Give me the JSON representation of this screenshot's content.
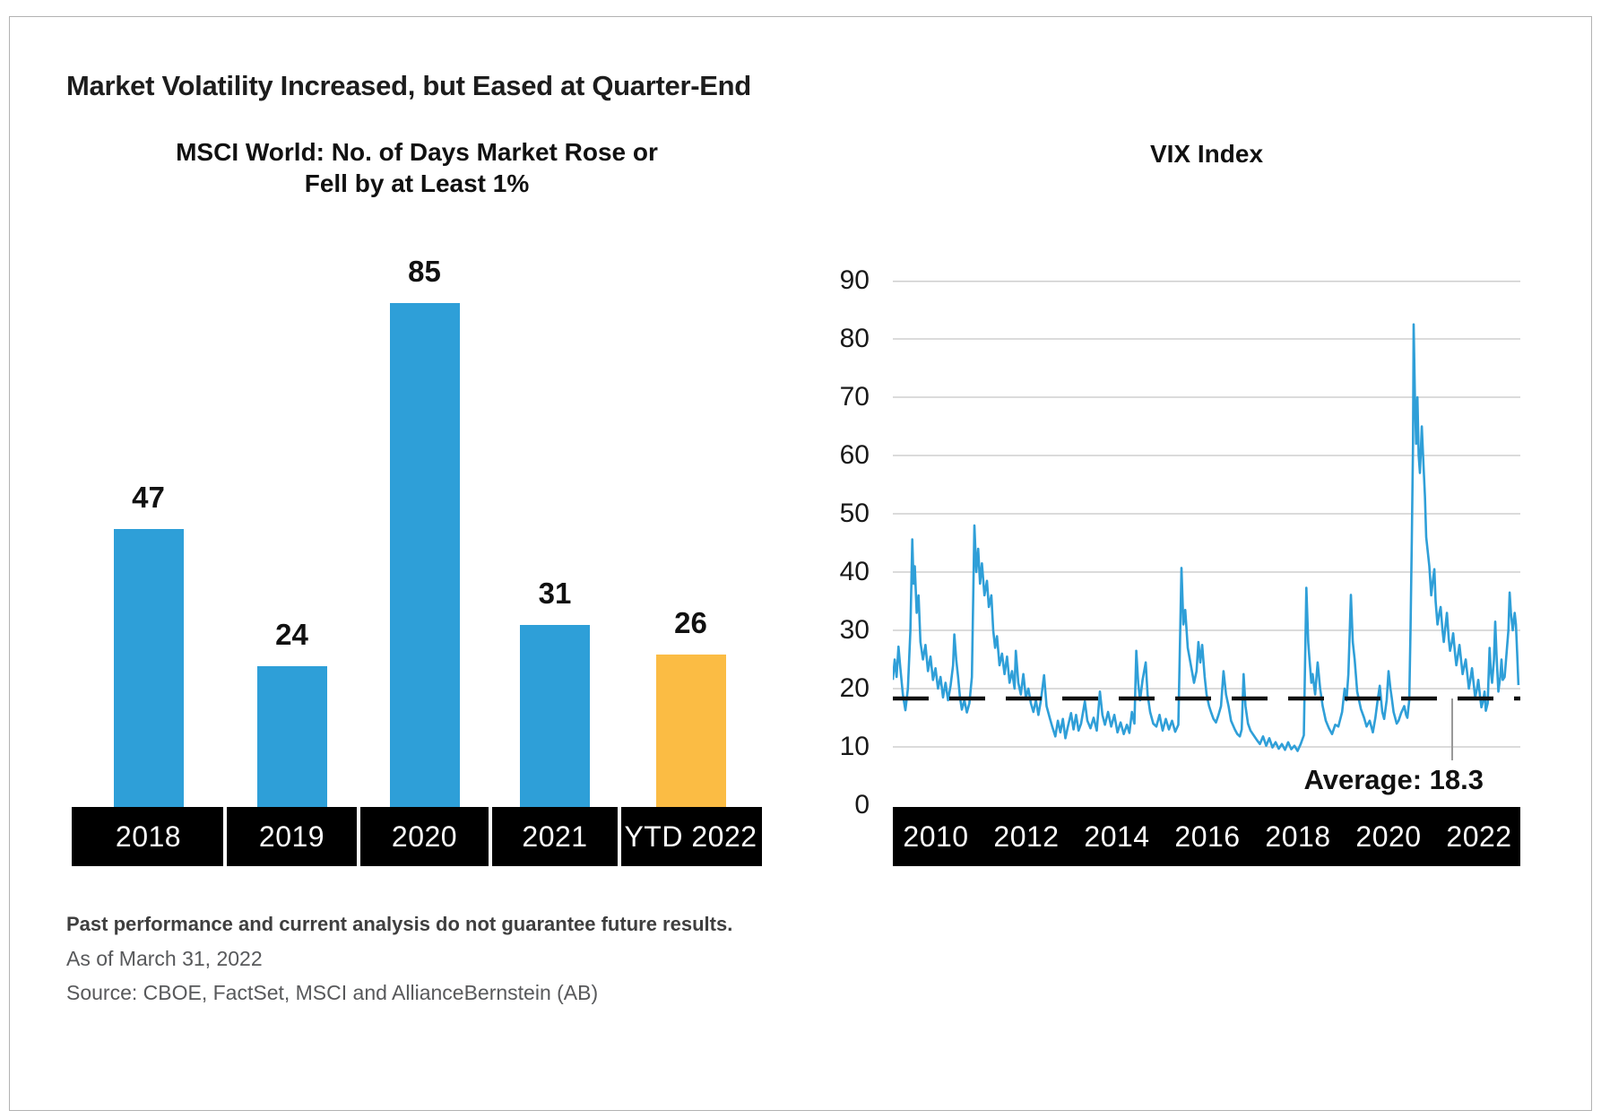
{
  "page_title": "Market Volatility Increased, but Eased at Quarter-End",
  "footer": {
    "disclaimer": "Past performance and current analysis do not guarantee future results.",
    "as_of": "As of March 31, 2022",
    "source": "Source: CBOE, FactSet, MSCI and AllianceBernstein (AB)"
  },
  "colors": {
    "bar_blue": "#2E9FD8",
    "bar_orange": "#FBBC44",
    "line_blue": "#2F9FD8",
    "band_black": "#000000",
    "gridline": "#cfcfcf",
    "average_line": "#111111",
    "callout_line": "#999999"
  },
  "chart_data": [
    {
      "type": "bar",
      "title_lines": [
        "MSCI World: No. of Days Market Rose or",
        "Fell by at Least 1%"
      ],
      "categories": [
        "2018",
        "2019",
        "2020",
        "2021",
        "YTD 2022"
      ],
      "values": [
        47,
        24,
        85,
        31,
        26
      ],
      "bar_colors": [
        "#2E9FD8",
        "#2E9FD8",
        "#2E9FD8",
        "#2E9FD8",
        "#FBBC44"
      ],
      "value_labels_shown": true,
      "x_axis_style": "black-band-white-labels"
    },
    {
      "type": "line",
      "title": "VIX Index",
      "ylim": [
        0,
        90
      ],
      "y_ticks": [
        90,
        80,
        70,
        60,
        50,
        40,
        30,
        20,
        10,
        0
      ],
      "x_tick_labels": [
        "2010",
        "2012",
        "2014",
        "2016",
        "2018",
        "2020",
        "2022"
      ],
      "grid": "horizontal",
      "legend": "none",
      "average_line": {
        "value": 18.3,
        "label": "Average: 18.3",
        "style": "dashed-black"
      },
      "series_name": "VIX Index",
      "x_is_fraction_of_width": true,
      "points": [
        [
          0.0,
          21.5
        ],
        [
          0.003,
          25
        ],
        [
          0.006,
          22
        ],
        [
          0.009,
          27.2
        ],
        [
          0.012,
          23.5
        ],
        [
          0.016,
          19
        ],
        [
          0.02,
          16.3
        ],
        [
          0.024,
          20
        ],
        [
          0.028,
          30
        ],
        [
          0.031,
          45.6
        ],
        [
          0.033,
          38
        ],
        [
          0.035,
          41
        ],
        [
          0.038,
          33
        ],
        [
          0.041,
          36
        ],
        [
          0.044,
          28
        ],
        [
          0.048,
          25
        ],
        [
          0.052,
          27.5
        ],
        [
          0.056,
          23
        ],
        [
          0.06,
          25.5
        ],
        [
          0.064,
          21.5
        ],
        [
          0.068,
          23.5
        ],
        [
          0.072,
          20
        ],
        [
          0.076,
          22
        ],
        [
          0.08,
          18.5
        ],
        [
          0.084,
          21
        ],
        [
          0.088,
          18
        ],
        [
          0.092,
          20.5
        ],
        [
          0.096,
          24
        ],
        [
          0.098,
          29.3
        ],
        [
          0.101,
          25
        ],
        [
          0.104,
          22
        ],
        [
          0.107,
          18.5
        ],
        [
          0.11,
          16.4
        ],
        [
          0.114,
          18
        ],
        [
          0.118,
          15.9
        ],
        [
          0.122,
          17.5
        ],
        [
          0.126,
          22
        ],
        [
          0.13,
          48
        ],
        [
          0.133,
          40
        ],
        [
          0.136,
          44
        ],
        [
          0.139,
          38
        ],
        [
          0.142,
          41.5
        ],
        [
          0.146,
          36
        ],
        [
          0.15,
          38.5
        ],
        [
          0.153,
          34
        ],
        [
          0.157,
          36
        ],
        [
          0.16,
          30
        ],
        [
          0.163,
          27
        ],
        [
          0.166,
          29
        ],
        [
          0.17,
          24
        ],
        [
          0.174,
          26
        ],
        [
          0.178,
          22.5
        ],
        [
          0.182,
          25.5
        ],
        [
          0.186,
          21
        ],
        [
          0.19,
          23
        ],
        [
          0.194,
          20
        ],
        [
          0.196,
          26.5
        ],
        [
          0.2,
          21
        ],
        [
          0.204,
          19
        ],
        [
          0.208,
          22.5
        ],
        [
          0.212,
          18.5
        ],
        [
          0.216,
          20
        ],
        [
          0.22,
          17.5
        ],
        [
          0.224,
          16
        ],
        [
          0.228,
          18
        ],
        [
          0.232,
          15.5
        ],
        [
          0.236,
          18
        ],
        [
          0.241,
          22.3
        ],
        [
          0.245,
          17
        ],
        [
          0.25,
          15
        ],
        [
          0.254,
          13.5
        ],
        [
          0.259,
          11.8
        ],
        [
          0.263,
          14.5
        ],
        [
          0.267,
          12.5
        ],
        [
          0.271,
          14.8
        ],
        [
          0.275,
          11.5
        ],
        [
          0.279,
          13.5
        ],
        [
          0.284,
          15.8
        ],
        [
          0.288,
          13
        ],
        [
          0.292,
          15.5
        ],
        [
          0.296,
          12.8
        ],
        [
          0.3,
          14
        ],
        [
          0.306,
          17.8
        ],
        [
          0.31,
          14.5
        ],
        [
          0.315,
          13.2
        ],
        [
          0.32,
          15
        ],
        [
          0.325,
          12.8
        ],
        [
          0.33,
          19.5
        ],
        [
          0.334,
          15.5
        ],
        [
          0.338,
          13.8
        ],
        [
          0.343,
          16
        ],
        [
          0.348,
          13.5
        ],
        [
          0.353,
          15.5
        ],
        [
          0.358,
          12.5
        ],
        [
          0.363,
          14.2
        ],
        [
          0.368,
          12.2
        ],
        [
          0.373,
          13.8
        ],
        [
          0.377,
          12.4
        ],
        [
          0.381,
          16
        ],
        [
          0.385,
          14
        ],
        [
          0.388,
          26.5
        ],
        [
          0.391,
          21
        ],
        [
          0.394,
          18
        ],
        [
          0.398,
          21.5
        ],
        [
          0.403,
          24.5
        ],
        [
          0.406,
          19
        ],
        [
          0.41,
          16
        ],
        [
          0.415,
          14
        ],
        [
          0.42,
          13.5
        ],
        [
          0.425,
          15.5
        ],
        [
          0.43,
          12.8
        ],
        [
          0.435,
          14.8
        ],
        [
          0.44,
          13
        ],
        [
          0.445,
          14.5
        ],
        [
          0.45,
          12.6
        ],
        [
          0.455,
          13.8
        ],
        [
          0.46,
          40.7
        ],
        [
          0.463,
          31
        ],
        [
          0.466,
          33.5
        ],
        [
          0.47,
          27
        ],
        [
          0.475,
          24
        ],
        [
          0.48,
          21
        ],
        [
          0.484,
          23
        ],
        [
          0.487,
          28
        ],
        [
          0.49,
          24.5
        ],
        [
          0.493,
          27.5
        ],
        [
          0.497,
          22
        ],
        [
          0.5,
          19
        ],
        [
          0.504,
          17
        ],
        [
          0.507,
          16
        ],
        [
          0.511,
          14.8
        ],
        [
          0.515,
          14.2
        ],
        [
          0.519,
          15.5
        ],
        [
          0.523,
          17
        ],
        [
          0.527,
          23
        ],
        [
          0.531,
          19
        ],
        [
          0.535,
          17
        ],
        [
          0.539,
          14.5
        ],
        [
          0.545,
          13
        ],
        [
          0.549,
          12.2
        ],
        [
          0.553,
          11.8
        ],
        [
          0.556,
          13
        ],
        [
          0.559,
          22.5
        ],
        [
          0.562,
          17
        ],
        [
          0.566,
          14
        ],
        [
          0.57,
          12.8
        ],
        [
          0.575,
          12
        ],
        [
          0.58,
          11.2
        ],
        [
          0.585,
          10.5
        ],
        [
          0.59,
          11.8
        ],
        [
          0.595,
          10.2
        ],
        [
          0.6,
          11.5
        ],
        [
          0.605,
          9.9
        ],
        [
          0.61,
          10.8
        ],
        [
          0.615,
          9.7
        ],
        [
          0.62,
          10.5
        ],
        [
          0.625,
          9.5
        ],
        [
          0.63,
          10.8
        ],
        [
          0.635,
          9.6
        ],
        [
          0.64,
          10.2
        ],
        [
          0.645,
          9.3
        ],
        [
          0.65,
          10.5
        ],
        [
          0.655,
          12
        ],
        [
          0.659,
          37.3
        ],
        [
          0.662,
          28
        ],
        [
          0.664,
          25
        ],
        [
          0.667,
          21
        ],
        [
          0.669,
          22.5
        ],
        [
          0.673,
          19
        ],
        [
          0.677,
          24.5
        ],
        [
          0.681,
          20
        ],
        [
          0.685,
          17
        ],
        [
          0.69,
          14.5
        ],
        [
          0.695,
          13.2
        ],
        [
          0.7,
          12.2
        ],
        [
          0.705,
          13.8
        ],
        [
          0.71,
          13.5
        ],
        [
          0.716,
          16
        ],
        [
          0.72,
          20
        ],
        [
          0.723,
          18
        ],
        [
          0.726,
          22.5
        ],
        [
          0.73,
          36.1
        ],
        [
          0.733,
          28
        ],
        [
          0.736,
          25
        ],
        [
          0.74,
          19.5
        ],
        [
          0.746,
          16.5
        ],
        [
          0.751,
          15
        ],
        [
          0.755,
          13.5
        ],
        [
          0.76,
          14.5
        ],
        [
          0.765,
          12.5
        ],
        [
          0.769,
          15
        ],
        [
          0.772,
          17.5
        ],
        [
          0.776,
          20.5
        ],
        [
          0.78,
          16
        ],
        [
          0.783,
          14.8
        ],
        [
          0.787,
          18
        ],
        [
          0.79,
          23
        ],
        [
          0.793,
          20
        ],
        [
          0.795,
          18.5
        ],
        [
          0.798,
          16
        ],
        [
          0.8,
          15.2
        ],
        [
          0.803,
          14
        ],
        [
          0.806,
          14.5
        ],
        [
          0.81,
          15.8
        ],
        [
          0.815,
          17
        ],
        [
          0.818,
          15.5
        ],
        [
          0.82,
          15
        ],
        [
          0.823,
          18
        ],
        [
          0.825,
          30
        ],
        [
          0.827,
          45
        ],
        [
          0.829,
          62
        ],
        [
          0.83,
          82.5
        ],
        [
          0.832,
          70
        ],
        [
          0.834,
          62
        ],
        [
          0.836,
          70
        ],
        [
          0.838,
          60
        ],
        [
          0.84,
          57
        ],
        [
          0.843,
          65
        ],
        [
          0.845,
          60
        ],
        [
          0.848,
          53
        ],
        [
          0.85,
          46
        ],
        [
          0.853,
          43
        ],
        [
          0.855,
          41
        ],
        [
          0.858,
          36
        ],
        [
          0.86,
          38
        ],
        [
          0.863,
          40.5
        ],
        [
          0.865,
          35
        ],
        [
          0.868,
          31
        ],
        [
          0.871,
          33
        ],
        [
          0.873,
          34
        ],
        [
          0.876,
          30
        ],
        [
          0.878,
          28
        ],
        [
          0.881,
          31
        ],
        [
          0.883,
          33
        ],
        [
          0.886,
          28.5
        ],
        [
          0.888,
          26.5
        ],
        [
          0.891,
          28
        ],
        [
          0.893,
          29.5
        ],
        [
          0.896,
          26
        ],
        [
          0.898,
          24
        ],
        [
          0.901,
          26
        ],
        [
          0.903,
          27.5
        ],
        [
          0.906,
          24.5
        ],
        [
          0.908,
          22.5
        ],
        [
          0.911,
          24
        ],
        [
          0.913,
          25
        ],
        [
          0.916,
          22
        ],
        [
          0.918,
          20
        ],
        [
          0.921,
          22
        ],
        [
          0.923,
          23.5
        ],
        [
          0.926,
          20.5
        ],
        [
          0.928,
          18.5
        ],
        [
          0.931,
          20
        ],
        [
          0.933,
          21.5
        ],
        [
          0.936,
          18.5
        ],
        [
          0.938,
          16.8
        ],
        [
          0.941,
          18
        ],
        [
          0.943,
          19.5
        ],
        [
          0.945,
          16.2
        ],
        [
          0.948,
          17.5
        ],
        [
          0.951,
          27
        ],
        [
          0.953,
          23
        ],
        [
          0.955,
          21
        ],
        [
          0.958,
          25
        ],
        [
          0.96,
          31.5
        ],
        [
          0.962,
          26
        ],
        [
          0.965,
          19.5
        ],
        [
          0.968,
          22
        ],
        [
          0.97,
          25
        ],
        [
          0.972,
          21.5
        ],
        [
          0.975,
          22
        ],
        [
          0.978,
          26
        ],
        [
          0.981,
          30
        ],
        [
          0.983,
          36.5
        ],
        [
          0.985,
          33
        ],
        [
          0.988,
          30
        ],
        [
          0.991,
          33
        ],
        [
          0.993,
          31
        ],
        [
          0.995,
          26
        ],
        [
          0.997,
          20.6
        ]
      ]
    }
  ]
}
